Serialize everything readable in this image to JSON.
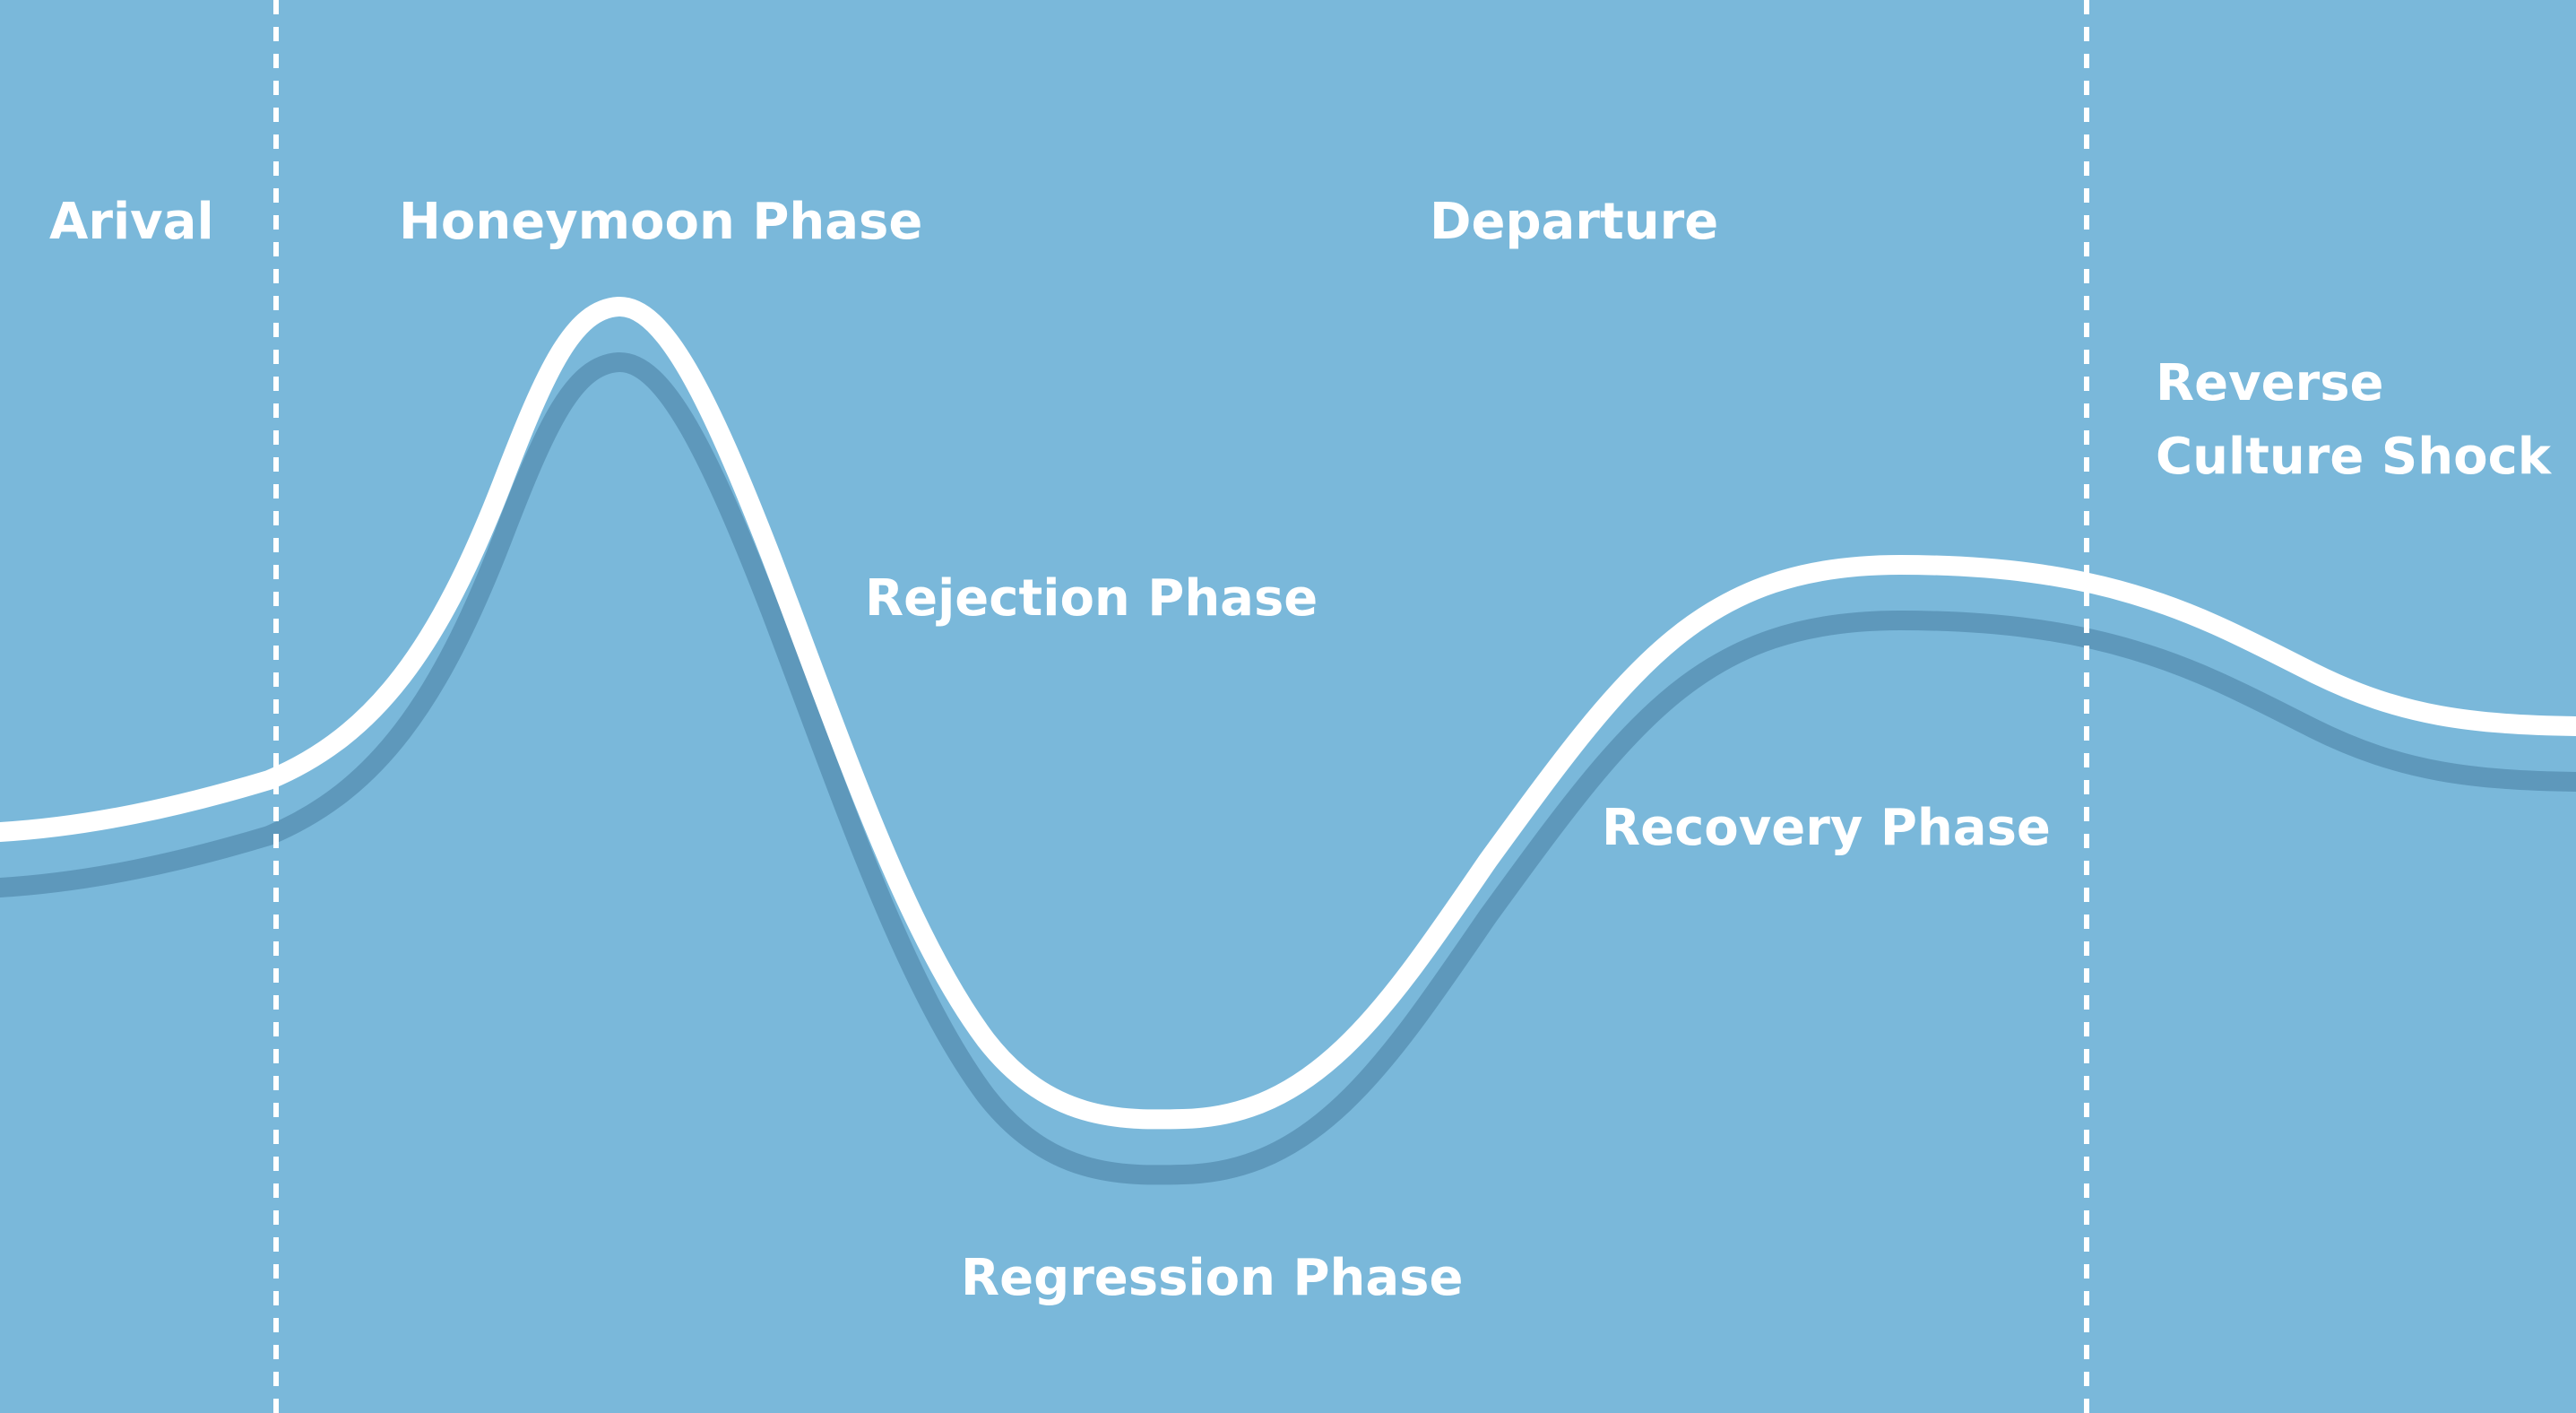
{
  "colors": {
    "background": "#7ab8da",
    "curve": "#ffffff",
    "curve_shadow": "#5e98bb",
    "divider": "#ffffff",
    "label": "#ffffff"
  },
  "labels": {
    "arrival": "Arival",
    "honeymoon": "Honeymoon Phase",
    "departure": "Departure",
    "reverse_line1": "Reverse",
    "reverse_line2": "Culture Shock",
    "rejection": "Rejection Phase",
    "recovery": "Recovery Phase",
    "regression": "Regression Phase"
  }
}
